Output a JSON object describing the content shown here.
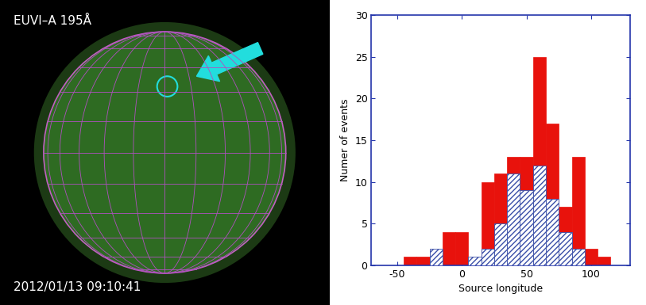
{
  "image": {
    "label": "EUVI–A 195Å",
    "timestamp": "2012/01/13 09:10:41"
  },
  "chart_data": {
    "type": "histogram",
    "x_label": "Source longitude",
    "y_label": "Numer of events",
    "bins": [
      -45,
      -35,
      -25,
      -15,
      -5,
      5,
      15,
      25,
      35,
      45,
      55,
      65,
      75,
      85,
      95,
      105,
      115
    ],
    "series": [
      {
        "color": "#e8120c",
        "values": [
          1,
          1,
          0,
          4,
          4,
          0,
          10,
          11,
          13,
          13,
          25,
          17,
          7,
          13,
          2,
          1
        ]
      },
      {
        "color": "#3a4fa8",
        "values": [
          0,
          0,
          2,
          0,
          0,
          1,
          2,
          5,
          11,
          9,
          12,
          8,
          4,
          2,
          0,
          0
        ]
      }
    ],
    "xlim": [
      -70,
      130
    ],
    "xticks": [
      -50,
      0,
      50,
      100
    ],
    "ylim": [
      0,
      30
    ],
    "yticks": [
      0,
      5,
      10,
      15,
      20,
      25,
      30
    ]
  }
}
